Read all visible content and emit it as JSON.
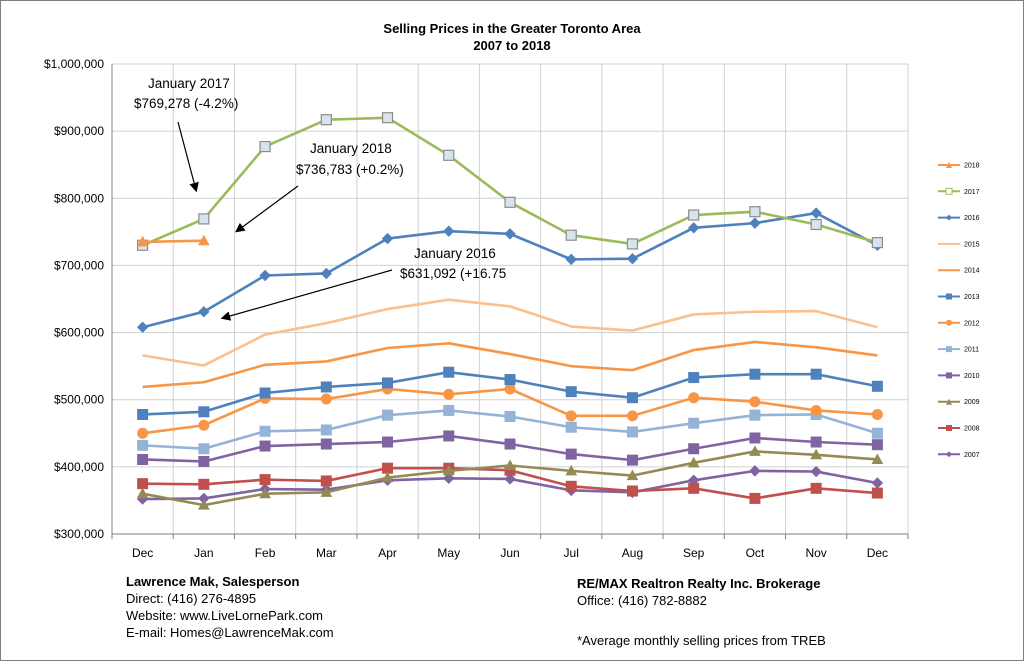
{
  "chart_data": {
    "type": "line",
    "title": "Selling Prices in the Greater Toronto Area",
    "subtitle": "2007 to 2018",
    "categories": [
      "Dec",
      "Jan",
      "Feb",
      "Mar",
      "Apr",
      "May",
      "Jun",
      "Jul",
      "Aug",
      "Sep",
      "Oct",
      "Nov",
      "Dec"
    ],
    "ylim": [
      300000,
      1000000
    ],
    "yticks": [
      "$300,000",
      "$400,000",
      "$500,000",
      "$600,000",
      "$700,000",
      "$800,000",
      "$900,000",
      "$1,000,000"
    ],
    "grid": true,
    "legend": "right",
    "series": [
      {
        "name": "2018",
        "color": "#f79646",
        "marker": "triangle",
        "values": [
          735000,
          736783,
          null,
          null,
          null,
          null,
          null,
          null,
          null,
          null,
          null,
          null,
          null
        ]
      },
      {
        "name": "2017",
        "color": "#9bbb59",
        "marker": "square-open",
        "values": [
          730000,
          769278,
          877000,
          917000,
          920000,
          864000,
          794000,
          745000,
          732000,
          775000,
          780000,
          761000,
          734000
        ]
      },
      {
        "name": "2016",
        "color": "#4f81bd",
        "marker": "diamond",
        "light": false,
        "values": [
          608000,
          631092,
          685000,
          688000,
          740000,
          751000,
          747000,
          709000,
          710000,
          756000,
          763000,
          778000,
          730000
        ]
      },
      {
        "name": "2015",
        "color": "#fac090",
        "marker": "none",
        "values": [
          566000,
          551000,
          597000,
          614000,
          635000,
          649000,
          639000,
          609000,
          603000,
          627000,
          631000,
          632000,
          608000
        ]
      },
      {
        "name": "2014",
        "color": "#f79646",
        "marker": "none",
        "values": [
          519000,
          526000,
          552000,
          557000,
          577000,
          584000,
          568000,
          550000,
          544000,
          574000,
          586000,
          578000,
          566000
        ]
      },
      {
        "name": "2013",
        "color": "#4f81bd",
        "marker": "square",
        "values": [
          478000,
          482000,
          510000,
          519000,
          525000,
          541000,
          530000,
          512000,
          503000,
          533000,
          538000,
          538000,
          520000
        ]
      },
      {
        "name": "2012",
        "color": "#f79646",
        "marker": "circle",
        "values": [
          450000,
          462000,
          502000,
          501000,
          516000,
          508000,
          516000,
          476000,
          476000,
          503000,
          497000,
          484000,
          478000
        ]
      },
      {
        "name": "2011",
        "color": "#95b3d7",
        "marker": "square",
        "values": [
          432000,
          427000,
          453000,
          455000,
          477000,
          484000,
          475000,
          459000,
          452000,
          465000,
          477000,
          478000,
          450000
        ]
      },
      {
        "name": "2010",
        "color": "#8064a2",
        "marker": "square",
        "values": [
          411000,
          408000,
          431000,
          434000,
          437000,
          446000,
          434000,
          419000,
          410000,
          427000,
          443000,
          437000,
          433000
        ]
      },
      {
        "name": "2009",
        "color": "#948a54",
        "marker": "triangle",
        "values": [
          360000,
          343000,
          360000,
          362000,
          384000,
          394000,
          402000,
          394000,
          387000,
          406000,
          423000,
          418000,
          411000
        ]
      },
      {
        "name": "2008",
        "color": "#c0504d",
        "marker": "square",
        "values": [
          375000,
          374000,
          381000,
          379000,
          398000,
          398000,
          395000,
          371000,
          364000,
          368000,
          353000,
          368000,
          361000
        ]
      },
      {
        "name": "2007",
        "color": "#8064a2",
        "marker": "diamond",
        "values": [
          352000,
          353000,
          367000,
          366000,
          380000,
          383000,
          382000,
          365000,
          362000,
          380000,
          394000,
          393000,
          376000
        ]
      }
    ],
    "annotations": [
      {
        "line1": "January 2017",
        "line2": "$769,278 (-4.2%)"
      },
      {
        "line1": "January 2018",
        "line2": "$736,783 (+0.2%)"
      },
      {
        "line1": "January 2016",
        "line2": "$631,092 (+16.75"
      }
    ]
  },
  "footer": {
    "name": "Lawrence Mak, Salesperson",
    "direct": "Direct:  (416) 276-4895",
    "website": "Website:  www.LiveLornePark.com",
    "email": "E-mail:  Homes@LawrenceMak.com",
    "brokerage": "RE/MAX Realtron Realty Inc. Brokerage",
    "office": "Office: (416) 782-8882",
    "note": "*Average monthly selling prices from TREB"
  }
}
